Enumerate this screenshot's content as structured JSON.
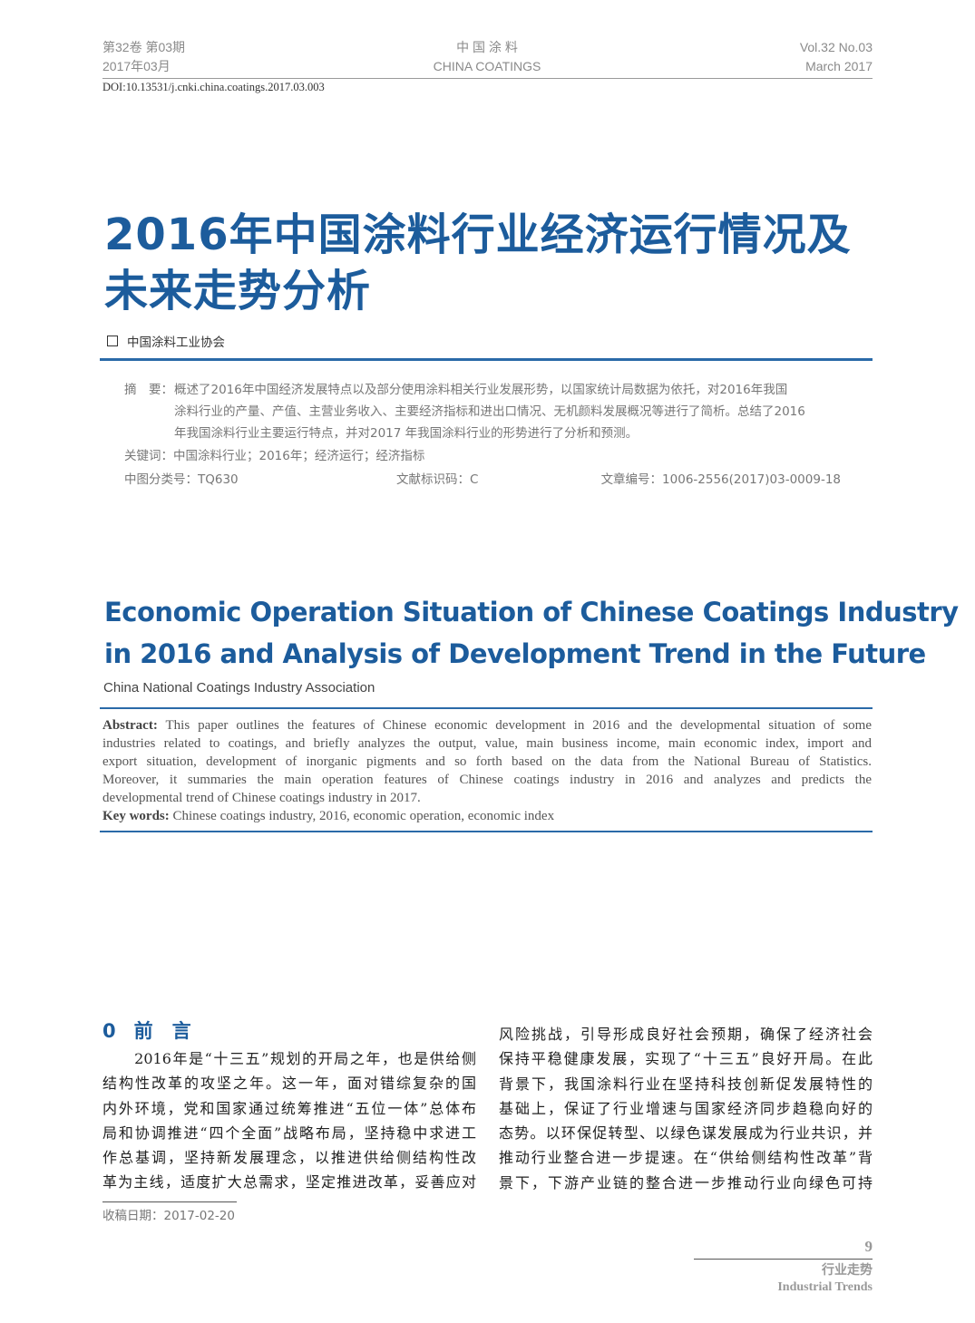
{
  "header": {
    "vol_cn": "第32卷 第03期",
    "date_cn": "2017年03月",
    "journal_cn": "中 国 涂 料",
    "journal_en": "CHINA COATINGS",
    "vol_en": "Vol.32  No.03",
    "date_en": "March 2017",
    "doi": "DOI:10.13531/j.cnki.china.coatings.2017.03.003"
  },
  "title_cn": [
    "2016年中国涂料行业经济运行情况及",
    "未来走势分析"
  ],
  "author_cn": "中国涂料工业协会",
  "abstract_cn": {
    "label": "摘　要：",
    "lines": [
      "概述了2016年中国经济发展特点以及部分使用涂料相关行业发展形势，以国家统计局数据为依托，对2016年我国",
      "涂料行业的产量、产值、主营业务收入、主要经济指标和进出口情况、无机颜料发展概况等进行了简析。总结了2016",
      "年我国涂料行业主要运行特点，并对2017 年我国涂料行业的形势进行了分析和预测。"
    ]
  },
  "keywords_cn": "关键词：中国涂料行业；2016年；经济运行；经济指标",
  "classification": "中图分类号：TQ630",
  "doc_code": "文献标识码：C",
  "article_no": "文章编号：1006-2556(2017)03-0009-18",
  "title_en": [
    "Economic Operation Situation of Chinese Coatings Industry",
    "in 2016 and Analysis of Development Trend in the Future"
  ],
  "author_en": "China National Coatings Industry Association",
  "abstract_en": {
    "label": "Abstract:",
    "lines": [
      " This paper outlines the features of Chinese economic development in 2016 and the developmental situation of some",
      "industries related to coatings, and briefly analyzes the output, value, main business income, main economic index, import and",
      "export situation, development of inorganic pigments and so forth based on the data from the National Bureau of Statistics.",
      "Moreover, it summaries the main operation features of Chinese coatings industry in 2016 and analyzes and predicts the",
      "developmental trend of Chinese coatings industry in 2017."
    ]
  },
  "keywords_en": {
    "label": "Key words:",
    "text": " Chinese coatings industry, 2016, economic operation, economic index"
  },
  "section": {
    "number": "0",
    "title": "前　言"
  },
  "body_left": [
    "　　2016年是“十三五”规划的开局之年，也是供给侧",
    "结构性改革的攻坚之年。这一年，面对错综复杂的国",
    "内外环境，党和国家通过统筹推进“五位一体”总体布",
    "局和协调推进“四个全面”战略布局，坚持稳中求进工",
    "作总基调，坚持新发展理念，以推进供给侧结构性改",
    "革为主线，适度扩大总需求，坚定推进改革，妥善应对"
  ],
  "body_right": [
    "风险挑战，引导形成良好社会预期，确保了经济社会",
    "保持平稳健康发展，实现了“十三五”良好开局。在此",
    "背景下，我国涂料行业在坚持科技创新促发展特性的",
    "基础上，保证了行业增速与国家经济同步趋稳向好的",
    "态势。以环保促转型、以绿色谋发展成为行业共识，并",
    "推动行业整合进一步提速。在“供给侧结构性改革”背",
    "景下，下游产业链的整合进一步推动行业向绿色可持"
  ],
  "received": "收稿日期：2017-02-20",
  "footer": {
    "page": "9",
    "section_cn": "行业走势",
    "section_en": "Industrial Trends"
  },
  "colors": {
    "accent": "#1c5c9c"
  }
}
